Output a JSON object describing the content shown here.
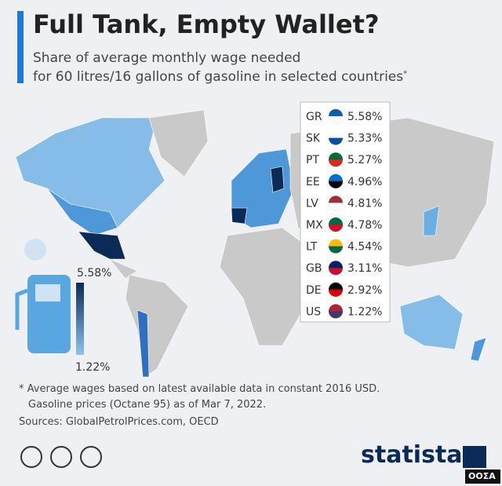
{
  "header": {
    "title": "Full Tank, Empty Wallet?",
    "subtitle": [
      "Share of average monthly wage needed",
      "for 60 litres/16 gallons of gasoline in selected countries"
    ],
    "subtitle_mark": "*"
  },
  "scale": {
    "max": "5.58%",
    "min": "1.22%"
  },
  "table": {
    "rows": [
      [
        "GR",
        "5.58%"
      ],
      [
        "SK",
        "5.33%"
      ],
      [
        "PT",
        "5.27%"
      ],
      [
        "EE",
        "4.96%"
      ],
      [
        "LV",
        "4.81%"
      ],
      [
        "MX",
        "4.78%"
      ],
      [
        "LT",
        "4.54%"
      ],
      [
        "GB",
        "3.11%"
      ],
      [
        "DE",
        "2.92%"
      ],
      [
        "US",
        "1.22%"
      ]
    ]
  },
  "footer": {
    "note": [
      "* Average wages based on latest available data in constant 2016 USD.",
      "Gasoline prices (Octane 95) as of Mar 7, 2022."
    ],
    "sources": "Sources: GlobalPetrolPrices.com, OECD",
    "brand": "statista",
    "watermark": "ΟΟΣΑ"
  }
}
